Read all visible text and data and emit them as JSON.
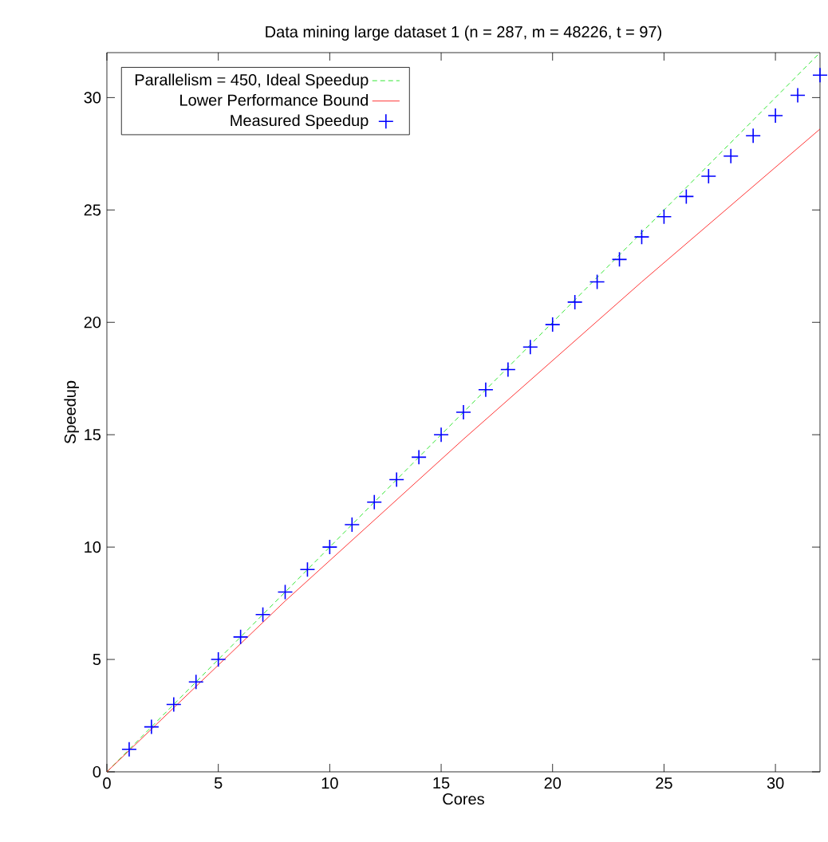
{
  "chart_data": {
    "type": "line",
    "title": "Data mining large dataset 1 (n = 287, m = 48226, t = 97)",
    "xlabel": "Cores",
    "ylabel": "Speedup",
    "xlim": [
      0,
      32
    ],
    "ylim": [
      0,
      32
    ],
    "xticks": [
      0,
      5,
      10,
      15,
      20,
      25,
      30
    ],
    "yticks": [
      0,
      5,
      10,
      15,
      20,
      25,
      30
    ],
    "legend": "top left",
    "grid": false,
    "series": [
      {
        "name": "Parallelism = 450, Ideal Speedup",
        "color": "#00e000",
        "line_style": "dashed",
        "x": [
          0,
          32
        ],
        "values": [
          0,
          32
        ]
      },
      {
        "name": "Lower Performance Bound",
        "color": "#ff0000",
        "line_style": "solid",
        "x": [
          0,
          8,
          16,
          24,
          32
        ],
        "values": [
          0,
          7.6,
          14.8,
          21.8,
          28.6
        ]
      },
      {
        "name": "Measured Speedup",
        "type": "scatter",
        "marker": "cross",
        "color": "#0000ff",
        "x": [
          1,
          2,
          3,
          4,
          5,
          6,
          7,
          8,
          9,
          10,
          11,
          12,
          13,
          14,
          15,
          16,
          17,
          18,
          19,
          20,
          21,
          22,
          23,
          24,
          25,
          26,
          27,
          28,
          29,
          30,
          31,
          32
        ],
        "values": [
          1,
          2,
          3,
          4,
          5,
          6,
          7,
          8,
          9,
          10,
          11,
          12,
          13,
          14,
          15,
          16,
          17,
          17.9,
          18.9,
          19.9,
          20.9,
          21.8,
          22.8,
          23.8,
          24.7,
          25.6,
          26.5,
          27.4,
          28.3,
          29.2,
          30.1,
          31.0
        ]
      }
    ]
  }
}
